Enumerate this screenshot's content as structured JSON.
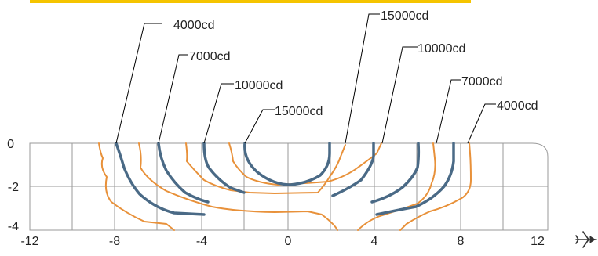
{
  "colors": {
    "accent_bar": "#f5c400",
    "grid": "#9a9a9a",
    "orange_contour": "#e8913a",
    "blue_contour": "#4a6a86",
    "leader": "#000000",
    "text": "#222222"
  },
  "axes": {
    "x_ticks": [
      "-12",
      "-8",
      "-4",
      "0",
      "4",
      "8",
      "12"
    ],
    "y_ticks": [
      "0",
      "-2",
      "-4"
    ]
  },
  "direction_icon": "airplane-icon",
  "labels": {
    "left_4000": "4000cd",
    "left_7000": "7000cd",
    "left_10000": "10000cd",
    "left_15000": "15000cd",
    "right_15000": "15000cd",
    "right_10000": "10000cd",
    "right_7000": "7000cd",
    "right_4000": "4000cd"
  }
}
